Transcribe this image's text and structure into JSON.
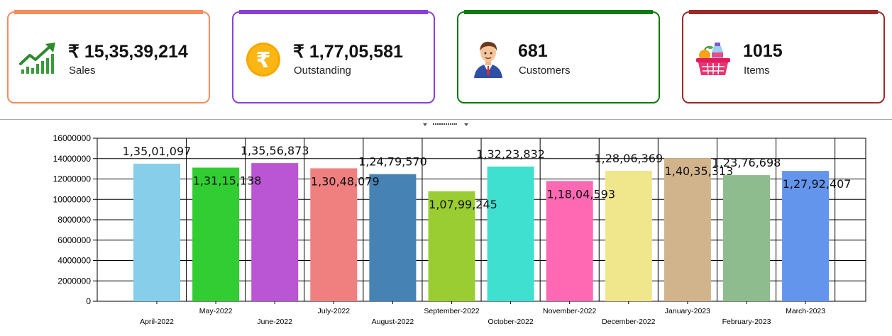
{
  "cards": [
    {
      "value": "₹ 15,35,39,214",
      "label": "Sales",
      "color": "#f58d5c",
      "icon": "sales-growth-icon"
    },
    {
      "value": "₹ 1,77,05,581",
      "label": "Outstanding",
      "color": "#8b3fd9",
      "icon": "rupee-coin-icon"
    },
    {
      "value": "681",
      "label": "Customers",
      "color": "#0e7a0e",
      "icon": "customer-person-icon"
    },
    {
      "value": "1015",
      "label": "Items",
      "color": "#9e2a2a",
      "icon": "shopping-basket-icon"
    }
  ],
  "chart_data": {
    "type": "bar",
    "title": "",
    "xlabel": "",
    "ylabel": "",
    "categories": [
      "April-2022",
      "May-2022",
      "June-2022",
      "July-2022",
      "August-2022",
      "September-2022",
      "October-2022",
      "November-2022",
      "December-2022",
      "January-2023",
      "February-2023",
      "March-2023"
    ],
    "values": [
      13501097,
      13115138,
      13556873,
      13048079,
      12479570,
      10799245,
      13223832,
      11804593,
      12806369,
      14035313,
      12376698,
      12792407
    ],
    "value_labels": [
      "1,35,01,097",
      "1,31,15,138",
      "1,35,56,873",
      "1,30,48,079",
      "1,24,79,570",
      "1,07,99,245",
      "1,32,23,832",
      "1,18,04,593",
      "1,28,06,369",
      "1,40,35,313",
      "1,23,76,698",
      "1,27,92,407"
    ],
    "colors": [
      "#87ceeb",
      "#32cd32",
      "#ba55d3",
      "#f08080",
      "#4682b4",
      "#9acd32",
      "#40e0d0",
      "#ff69b4",
      "#f0e68c",
      "#d2b48c",
      "#8fbc8f",
      "#6495ed"
    ],
    "ylim": [
      0,
      16000000
    ],
    "yticks": [
      0,
      2000000,
      4000000,
      6000000,
      8000000,
      10000000,
      12000000,
      14000000,
      16000000
    ],
    "ytick_labels": [
      "0",
      "2000000",
      "4000000",
      "6000000",
      "8000000",
      "10000000",
      "12000000",
      "14000000",
      "16000000"
    ],
    "grid": true,
    "legend": "none"
  }
}
